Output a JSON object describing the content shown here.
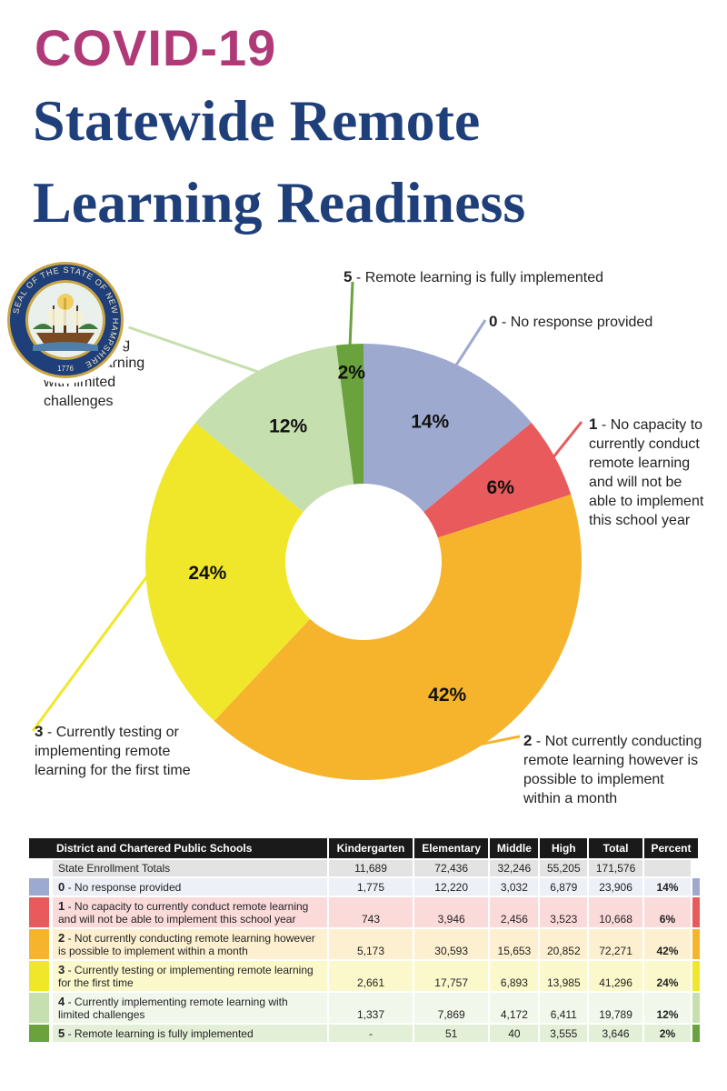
{
  "header": {
    "title_line1": "COVID-19",
    "title_line2": "Statewide Remote",
    "title_line3": "Learning Readiness"
  },
  "colors": {
    "c0": "#9ea9cf",
    "c1": "#e85a5b",
    "c2": "#f6b42d",
    "c3": "#f0e72b",
    "c4": "#c6dfae",
    "c5": "#6aa23d",
    "title_magenta": "#b03a78",
    "title_navy": "#1f3f7a"
  },
  "chart_data": {
    "type": "pie",
    "donut": true,
    "slices": [
      {
        "code": "0",
        "label": "No response provided",
        "value": 14,
        "pct_label": "14%",
        "color": "#9ea9cf"
      },
      {
        "code": "1",
        "label": "No capacity to currently conduct remote learning and will not be able to implement this school year",
        "value": 6,
        "pct_label": "6%",
        "color": "#e85a5b"
      },
      {
        "code": "2",
        "label": "Not currently conducting remote learning however is possible to implement within a month",
        "value": 42,
        "pct_label": "42%",
        "color": "#f6b42d"
      },
      {
        "code": "3",
        "label": "Currently testing or implementing remote learning for the first time",
        "value": 24,
        "pct_label": "24%",
        "color": "#f0e72b"
      },
      {
        "code": "4",
        "label": "Currently implementing remote learning with limited challenges",
        "value": 12,
        "pct_label": "12%",
        "color": "#c6dfae"
      },
      {
        "code": "5",
        "label": "Remote learning is fully implemented",
        "value": 2,
        "pct_label": "2%",
        "color": "#6aa23d"
      }
    ]
  },
  "legend": {
    "l5": {
      "code": "5",
      "text": " - Remote learning is fully implemented"
    },
    "l0": {
      "code": "0",
      "text": " - No response provided"
    },
    "l1": {
      "code": "1",
      "text": " - No capacity to currently conduct remote learning and will not be able to implement this school year"
    },
    "l2": {
      "code": "2",
      "text": " - Not currently conducting remote learning however is possible to implement within a month"
    },
    "l3": {
      "code": "3",
      "text": " - Currently testing or implementing remote learning for the first time"
    },
    "l4": {
      "code": "4",
      "text": " - Currently implementing remote learning with limited challenges"
    }
  },
  "table": {
    "headers": [
      "District and Chartered Public Schools",
      "Kindergarten",
      "Elementary",
      "Middle",
      "High",
      "Total",
      "Percent"
    ],
    "totals_row": {
      "label": "State Enrollment Totals",
      "values": [
        "11,689",
        "72,436",
        "32,246",
        "55,205",
        "171,576"
      ]
    },
    "rows": [
      {
        "code": "0",
        "desc": " - No response provided",
        "values": [
          "1,775",
          "12,220",
          "3,032",
          "6,879",
          "23,906"
        ],
        "percent": "14%",
        "color": "#9ea9cf",
        "bg": "#eef0f8"
      },
      {
        "code": "1",
        "desc": " - No capacity to currently conduct remote learning and will not be able to implement this school year",
        "values": [
          "743",
          "3,946",
          "2,456",
          "3,523",
          "10,668"
        ],
        "percent": "6%",
        "color": "#e85a5b",
        "bg": "#fbdada"
      },
      {
        "code": "2",
        "desc": " - Not currently conducting remote learning however is possible to implement within a month",
        "values": [
          "5,173",
          "30,593",
          "15,653",
          "20,852",
          "72,271"
        ],
        "percent": "42%",
        "color": "#f6b42d",
        "bg": "#fdf0d0"
      },
      {
        "code": "3",
        "desc": " - Currently testing or implementing remote learning for the first time",
        "values": [
          "2,661",
          "17,757",
          "6,893",
          "13,985",
          "41,296"
        ],
        "percent": "24%",
        "color": "#f0e72b",
        "bg": "#fbf8cc"
      },
      {
        "code": "4",
        "desc": " - Currently implementing remote learning with limited challenges",
        "values": [
          "1,337",
          "7,869",
          "4,172",
          "6,411",
          "19,789"
        ],
        "percent": "12%",
        "color": "#c6dfae",
        "bg": "#f1f7ea"
      },
      {
        "code": "5",
        "desc": " - Remote learning is fully implemented",
        "values": [
          "-",
          "51",
          "40",
          "3,555",
          "3,646"
        ],
        "percent": "2%",
        "color": "#6aa23d",
        "bg": "#e3efd6"
      }
    ]
  },
  "seal": {
    "ring_text": "SEAL OF THE STATE OF NEW HAMPSHIRE",
    "year": "1776"
  }
}
